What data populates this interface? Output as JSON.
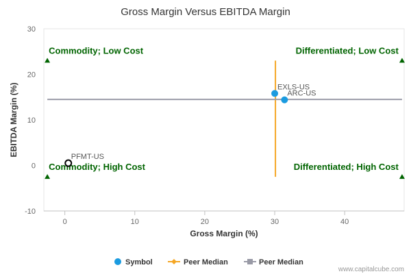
{
  "chart_data": {
    "type": "scatter",
    "title": "Gross Margin Versus EBITDA Margin",
    "xlabel": "Gross Margin (%)",
    "ylabel": "EBITDA Margin (%)",
    "xlim": [
      -3,
      48.5
    ],
    "ylim": [
      -10,
      30
    ],
    "xticks": [
      0,
      10,
      20,
      30,
      40
    ],
    "yticks": [
      -10,
      0,
      10,
      20,
      30
    ],
    "points": [
      {
        "name": "EXLS-US",
        "x": 30.0,
        "y": 15.8,
        "style": "filled"
      },
      {
        "name": "ARC-US",
        "x": 31.4,
        "y": 14.4,
        "style": "filled"
      },
      {
        "name": "PFMT-US",
        "x": 0.5,
        "y": 0.5,
        "style": "hollow"
      }
    ],
    "peer_median_x": 30.1,
    "peer_median_y": 14.5,
    "quadrant_labels": {
      "top_left": "Commodity; Low Cost",
      "top_right": "Differentiated; Low Cost",
      "bottom_left": "Commodity; High Cost",
      "bottom_right": "Differentiated; High Cost"
    },
    "legend": [
      {
        "label": "Symbol",
        "marker": "circle",
        "color": "#1a9be0"
      },
      {
        "label": "Peer Median",
        "marker": "diamond-line",
        "color": "#f5a623"
      },
      {
        "label": "Peer Median",
        "marker": "square-line",
        "color": "#999aa6"
      }
    ],
    "credit": "www.capitalcube.com",
    "colors": {
      "symbol": "#1a9be0",
      "peer_median_x": "#f5a623",
      "peer_median_y": "#999aa6",
      "quadrant": "#006400"
    }
  }
}
